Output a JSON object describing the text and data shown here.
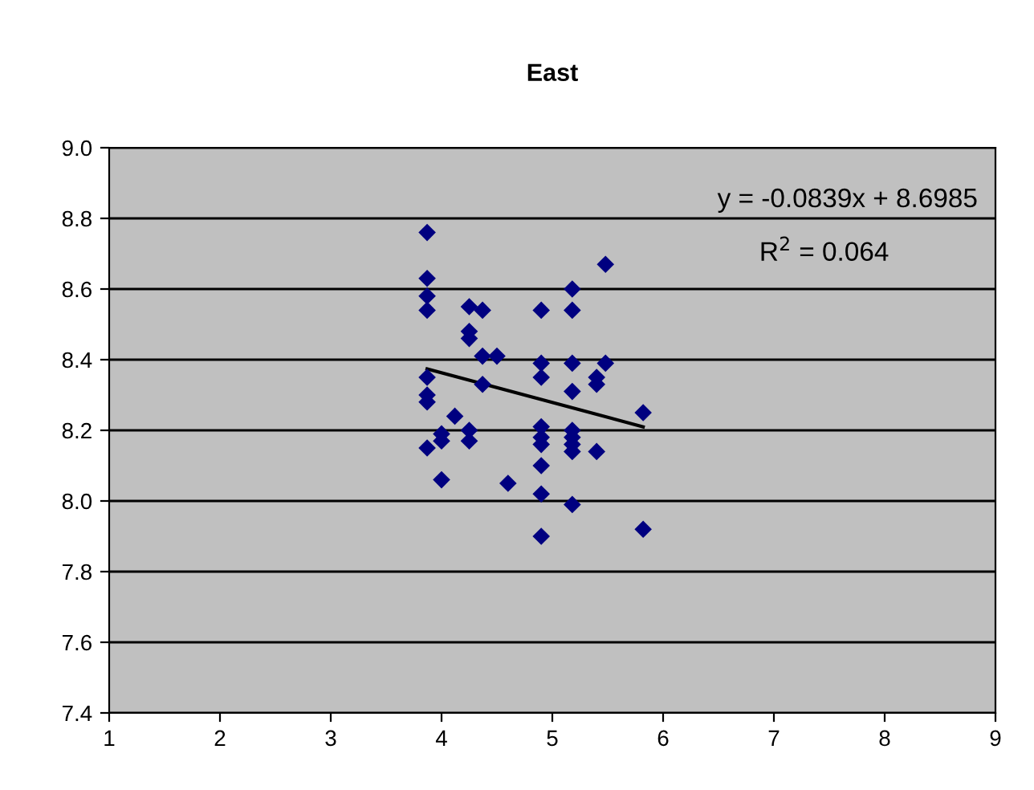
{
  "chart_data": {
    "type": "scatter",
    "title": "East",
    "xlim": [
      1,
      9
    ],
    "xticks": [
      1,
      2,
      3,
      4,
      5,
      6,
      7,
      8,
      9
    ],
    "ylim": [
      7.4,
      9.0
    ],
    "yticks": [
      {
        "value": 7.4,
        "label": "7.4"
      },
      {
        "value": 7.6,
        "label": "7.6"
      },
      {
        "value": 7.8,
        "label": "7.8"
      },
      {
        "value": 8.0,
        "label": "8.0"
      },
      {
        "value": 8.2,
        "label": "8.2"
      },
      {
        "value": 8.4,
        "label": "8.4"
      },
      {
        "value": 8.6,
        "label": "8.6"
      },
      {
        "value": 8.8,
        "label": "8.8"
      },
      {
        "value": 9.0,
        "label": "9.0"
      }
    ],
    "grid": "y",
    "marker": "diamond",
    "annotations": [
      "y = -0.0839x + 8.6985",
      "R$^{2}$ = 0.064"
    ],
    "series": [
      {
        "type": "scatter",
        "color": "#000080",
        "x": [
          3.87,
          3.87,
          3.87,
          3.87,
          3.87,
          3.87,
          3.87,
          3.87,
          4.0,
          4.0,
          4.0,
          4.12,
          4.25,
          4.25,
          4.25,
          4.25,
          4.25,
          4.37,
          4.37,
          4.37,
          4.5,
          4.6,
          4.9,
          4.9,
          4.9,
          4.9,
          4.9,
          4.9,
          4.9,
          4.9,
          4.9,
          5.18,
          5.18,
          5.18,
          5.18,
          5.18,
          5.18,
          5.18,
          5.18,
          5.18,
          5.4,
          5.4,
          5.4,
          5.48,
          5.48,
          5.82,
          5.82
        ],
        "values": [
          8.76,
          8.63,
          8.58,
          8.54,
          8.35,
          8.3,
          8.28,
          8.15,
          8.19,
          8.17,
          8.06,
          8.24,
          8.55,
          8.48,
          8.46,
          8.2,
          8.17,
          8.54,
          8.41,
          8.33,
          8.41,
          8.05,
          8.54,
          8.39,
          8.35,
          8.21,
          8.18,
          8.16,
          8.1,
          8.02,
          7.9,
          8.6,
          8.54,
          8.39,
          8.31,
          8.2,
          8.18,
          8.16,
          8.14,
          7.99,
          8.35,
          8.33,
          8.14,
          8.67,
          8.39,
          8.25,
          7.92
        ]
      },
      {
        "type": "line",
        "color": "#000000",
        "marker": "none",
        "x": [
          3.87,
          5.82
        ],
        "values": [
          8.374,
          8.21
        ]
      }
    ]
  }
}
